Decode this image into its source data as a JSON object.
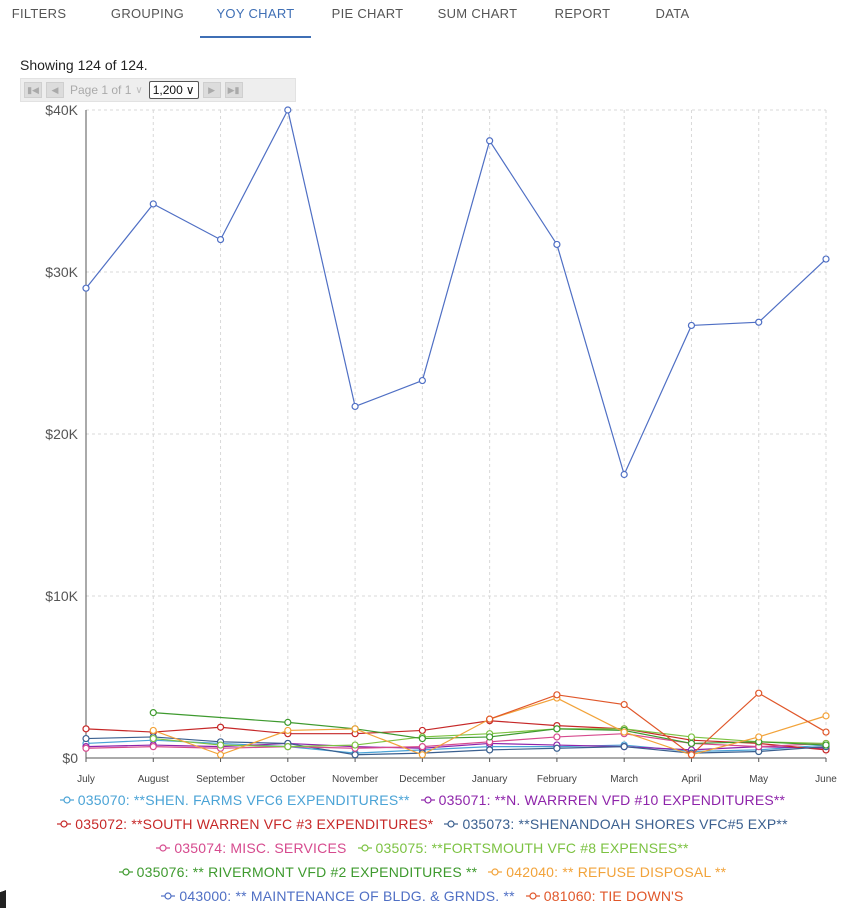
{
  "tabs": [
    {
      "label": "FILTERS",
      "active": false
    },
    {
      "label": "GROUPING",
      "active": false
    },
    {
      "label": "YOY CHART",
      "active": true
    },
    {
      "label": "PIE CHART",
      "active": false
    },
    {
      "label": "SUM CHART",
      "active": false
    },
    {
      "label": "REPORT",
      "active": false
    },
    {
      "label": "DATA",
      "active": false
    }
  ],
  "status": {
    "showing": "Showing 124 of 124."
  },
  "pager": {
    "page_label": "Page 1 of 1",
    "page_size": "1,200"
  },
  "icons": {
    "first": "first-page-icon",
    "prev": "prev-page-icon",
    "next": "next-page-icon",
    "last": "last-page-icon",
    "dropdown": "chevron-down-icon"
  },
  "chart_data": {
    "type": "line",
    "title": "",
    "xlabel": "",
    "ylabel": "",
    "categories": [
      "July",
      "August",
      "September",
      "October",
      "November",
      "December",
      "January",
      "February",
      "March",
      "April",
      "May",
      "June"
    ],
    "yticks": [
      "$0",
      "$10K",
      "$20K",
      "$30K",
      "$40K"
    ],
    "ylim": [
      0,
      40000
    ],
    "grid": true,
    "legend": "bottom",
    "series": [
      {
        "name": "035070: **SHEN. FARMS VFC6 EXPENDITURES**",
        "color": "#4aa3d6",
        "values": [
          900,
          1100,
          900,
          700,
          300,
          500,
          700,
          700,
          800,
          400,
          500,
          800
        ]
      },
      {
        "name": "035071: **N. WARRREN VFD #10 EXPENDITURES**",
        "color": "#8e24aa",
        "values": [
          700,
          800,
          700,
          900,
          700,
          600,
          900,
          800,
          700,
          500,
          700,
          600
        ]
      },
      {
        "name": "035072: **SOUTH WARREN VFC #3 EXPENDITURES*",
        "color": "#c62828",
        "values": [
          1800,
          1600,
          1900,
          1500,
          1500,
          1700,
          2300,
          2000,
          1800,
          1100,
          900,
          500
        ]
      },
      {
        "name": "035073: **SHENANDOAH SHORES VFC#5 EXP**",
        "color": "#3a5f8f",
        "values": [
          1200,
          1300,
          1000,
          900,
          200,
          300,
          500,
          600,
          700,
          300,
          400,
          700
        ]
      },
      {
        "name": "035074: MISC. SERVICES",
        "color": "#d64a8e",
        "values": [
          600,
          700,
          600,
          700,
          600,
          700,
          1000,
          1300,
          1500,
          900,
          700,
          900
        ]
      },
      {
        "name": "035075: **FORTSMOUTH VFC #8 EXPENSES**",
        "color": "#7cc242",
        "values": [
          null,
          1200,
          800,
          700,
          800,
          1300,
          1500,
          1800,
          1800,
          1300,
          1000,
          900
        ]
      },
      {
        "name": "035076: ** RIVERMONT VFD #2 EXPENDITURES **",
        "color": "#3e9a2e",
        "values": [
          null,
          2800,
          null,
          2200,
          1800,
          1200,
          1300,
          1800,
          1700,
          900,
          1000,
          800
        ]
      },
      {
        "name": "042040: ** REFUSE DISPOSAL **",
        "color": "#f2a33a",
        "values": [
          null,
          1700,
          200,
          1700,
          1800,
          200,
          2400,
          3700,
          1600,
          200,
          1300,
          2600
        ]
      },
      {
        "name": "043000: ** MAINTENANCE OF BLDG. & GRNDS. **",
        "color": "#4f6fc4",
        "values": [
          29000,
          34200,
          32000,
          40000,
          21700,
          23300,
          38100,
          31700,
          17500,
          26700,
          26900,
          30800
        ]
      },
      {
        "name": "081060: TIE DOWN'S",
        "color": "#e0572a",
        "values": [
          null,
          null,
          null,
          null,
          null,
          null,
          2400,
          3900,
          3300,
          200,
          4000,
          1600
        ]
      }
    ]
  },
  "legend_rows": [
    [
      0,
      1
    ],
    [
      2,
      3
    ],
    [
      4,
      5
    ],
    [
      6,
      7
    ],
    [
      8,
      9
    ]
  ]
}
